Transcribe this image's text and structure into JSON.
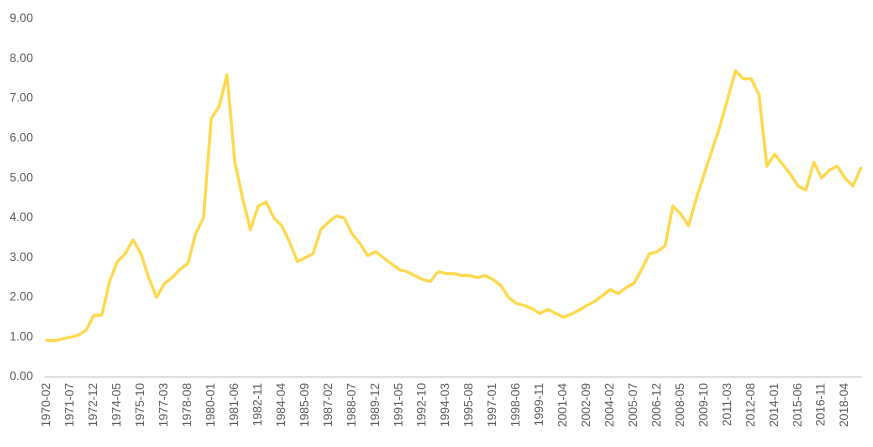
{
  "chart_data": {
    "type": "line",
    "categories": [
      "1970-02",
      null,
      null,
      "1971-07",
      null,
      null,
      "1972-12",
      null,
      null,
      "1974-05",
      null,
      null,
      "1975-10",
      null,
      null,
      "1977-03",
      null,
      null,
      "1978-08",
      null,
      null,
      "1980-01",
      null,
      null,
      "1981-06",
      null,
      null,
      "1982-11",
      null,
      null,
      "1984-04",
      null,
      null,
      "1985-09",
      null,
      null,
      "1987-02",
      null,
      null,
      "1988-07",
      null,
      null,
      "1989-12",
      null,
      null,
      "1991-05",
      null,
      null,
      "1992-10",
      null,
      null,
      "1994-03",
      null,
      null,
      "1995-08",
      null,
      null,
      "1997-01",
      null,
      null,
      "1998-06",
      null,
      null,
      "1999-11",
      null,
      null,
      "2001-04",
      null,
      null,
      "2002-09",
      null,
      null,
      "2004-02",
      null,
      null,
      "2005-07",
      null,
      null,
      "2006-12",
      null,
      null,
      "2008-05",
      null,
      null,
      "2009-10",
      null,
      null,
      "2011-03",
      null,
      null,
      "2012-08",
      null,
      null,
      "2014-01",
      null,
      null,
      "2015-06",
      null,
      null,
      "2016-11",
      null,
      null,
      "2018-04",
      null,
      null
    ],
    "series": [
      {
        "color": "#ffd84d",
        "values": [
          0.92,
          0.91,
          0.96,
          1.0,
          1.05,
          1.18,
          1.55,
          1.55,
          2.4,
          2.9,
          3.1,
          3.45,
          3.1,
          2.5,
          2.0,
          2.35,
          2.5,
          2.7,
          2.85,
          3.6,
          4.0,
          6.5,
          6.8,
          7.6,
          5.4,
          4.5,
          3.7,
          4.3,
          4.4,
          4.0,
          3.8,
          3.4,
          2.9,
          3.0,
          3.1,
          3.7,
          3.9,
          4.05,
          4.0,
          3.6,
          3.35,
          3.05,
          3.15,
          3.0,
          2.85,
          2.7,
          2.65,
          2.55,
          2.45,
          2.4,
          2.65,
          2.6,
          2.6,
          2.55,
          2.55,
          2.5,
          2.55,
          2.45,
          2.3,
          2.0,
          1.85,
          1.8,
          1.72,
          1.6,
          1.7,
          1.6,
          1.5,
          1.58,
          1.68,
          1.8,
          1.9,
          2.05,
          2.2,
          2.1,
          2.25,
          2.35,
          2.7,
          3.1,
          3.15,
          3.3,
          4.3,
          4.1,
          3.8,
          4.5,
          5.1,
          5.7,
          6.3,
          7.0,
          7.7,
          7.5,
          7.5,
          7.1,
          5.3,
          5.6,
          5.35,
          5.1,
          4.8,
          4.7,
          5.4,
          5.0,
          5.2,
          5.3,
          5.0,
          4.8,
          5.25
        ]
      }
    ],
    "ylim": [
      0,
      9
    ],
    "yticks": [
      {
        "value": 0,
        "label": "0.00"
      },
      {
        "value": 1,
        "label": "1.00"
      },
      {
        "value": 2,
        "label": "2.00"
      },
      {
        "value": 3,
        "label": "3.00"
      },
      {
        "value": 4,
        "label": "4.00"
      },
      {
        "value": 5,
        "label": "5.00"
      },
      {
        "value": 6,
        "label": "6.00"
      },
      {
        "value": 7,
        "label": "7.00"
      },
      {
        "value": 8,
        "label": "8.00"
      },
      {
        "value": 9,
        "label": "9.00"
      }
    ],
    "grid": false
  }
}
